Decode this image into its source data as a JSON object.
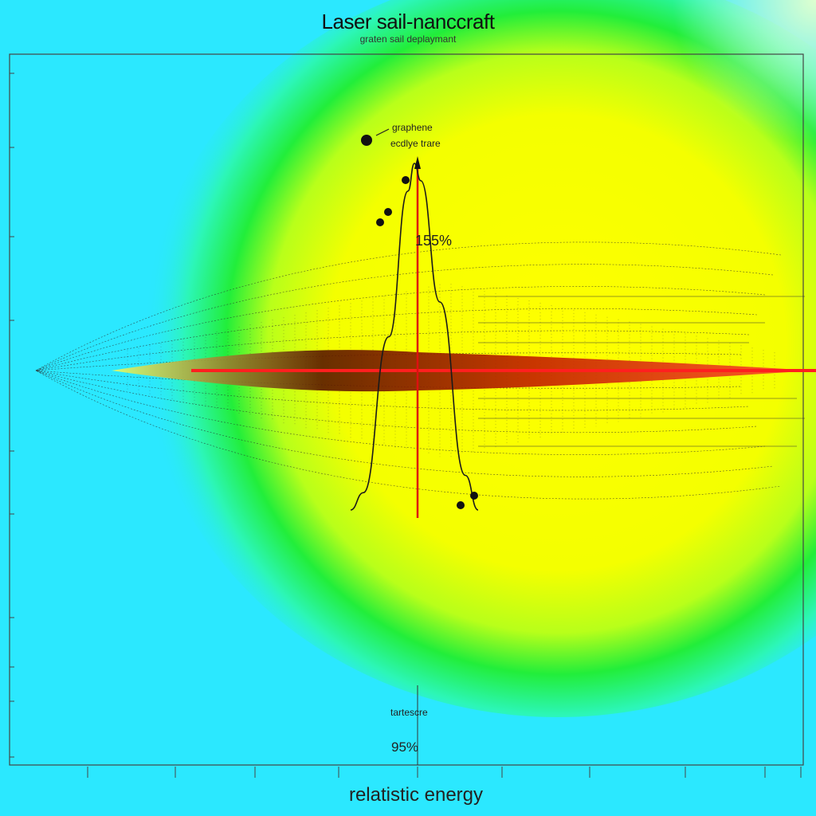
{
  "chart_data": {
    "type": "line",
    "title": "Laser sail-nanccraft",
    "subtitle": "graten sail deplaymant",
    "xlabel": "relatistic energy",
    "ylabel": "",
    "grid": false,
    "legend": "none",
    "annotations": [
      {
        "text": "graphene",
        "target": "marker"
      },
      {
        "text": "ecdlye trare",
        "target": "marker"
      },
      {
        "text": "155%",
        "target": "peak"
      },
      {
        "text": "tartescre",
        "target": "base"
      },
      {
        "text": "95%",
        "target": "base"
      }
    ],
    "series": [
      {
        "values": [
          0,
          0.05,
          0.5,
          0.92,
          1.0,
          0.95,
          0.6,
          0.1,
          0
        ],
        "x": [
          0,
          0.1,
          0.3,
          0.45,
          0.5,
          0.55,
          0.7,
          0.9,
          1
        ]
      }
    ],
    "colors": {
      "background": "#2be8ff",
      "glow_inner": "#ffff00",
      "glow_outer": "#14ee3c",
      "beam": "#ff1f1f",
      "core": "#5a0a00",
      "mesh": "#222222"
    }
  }
}
